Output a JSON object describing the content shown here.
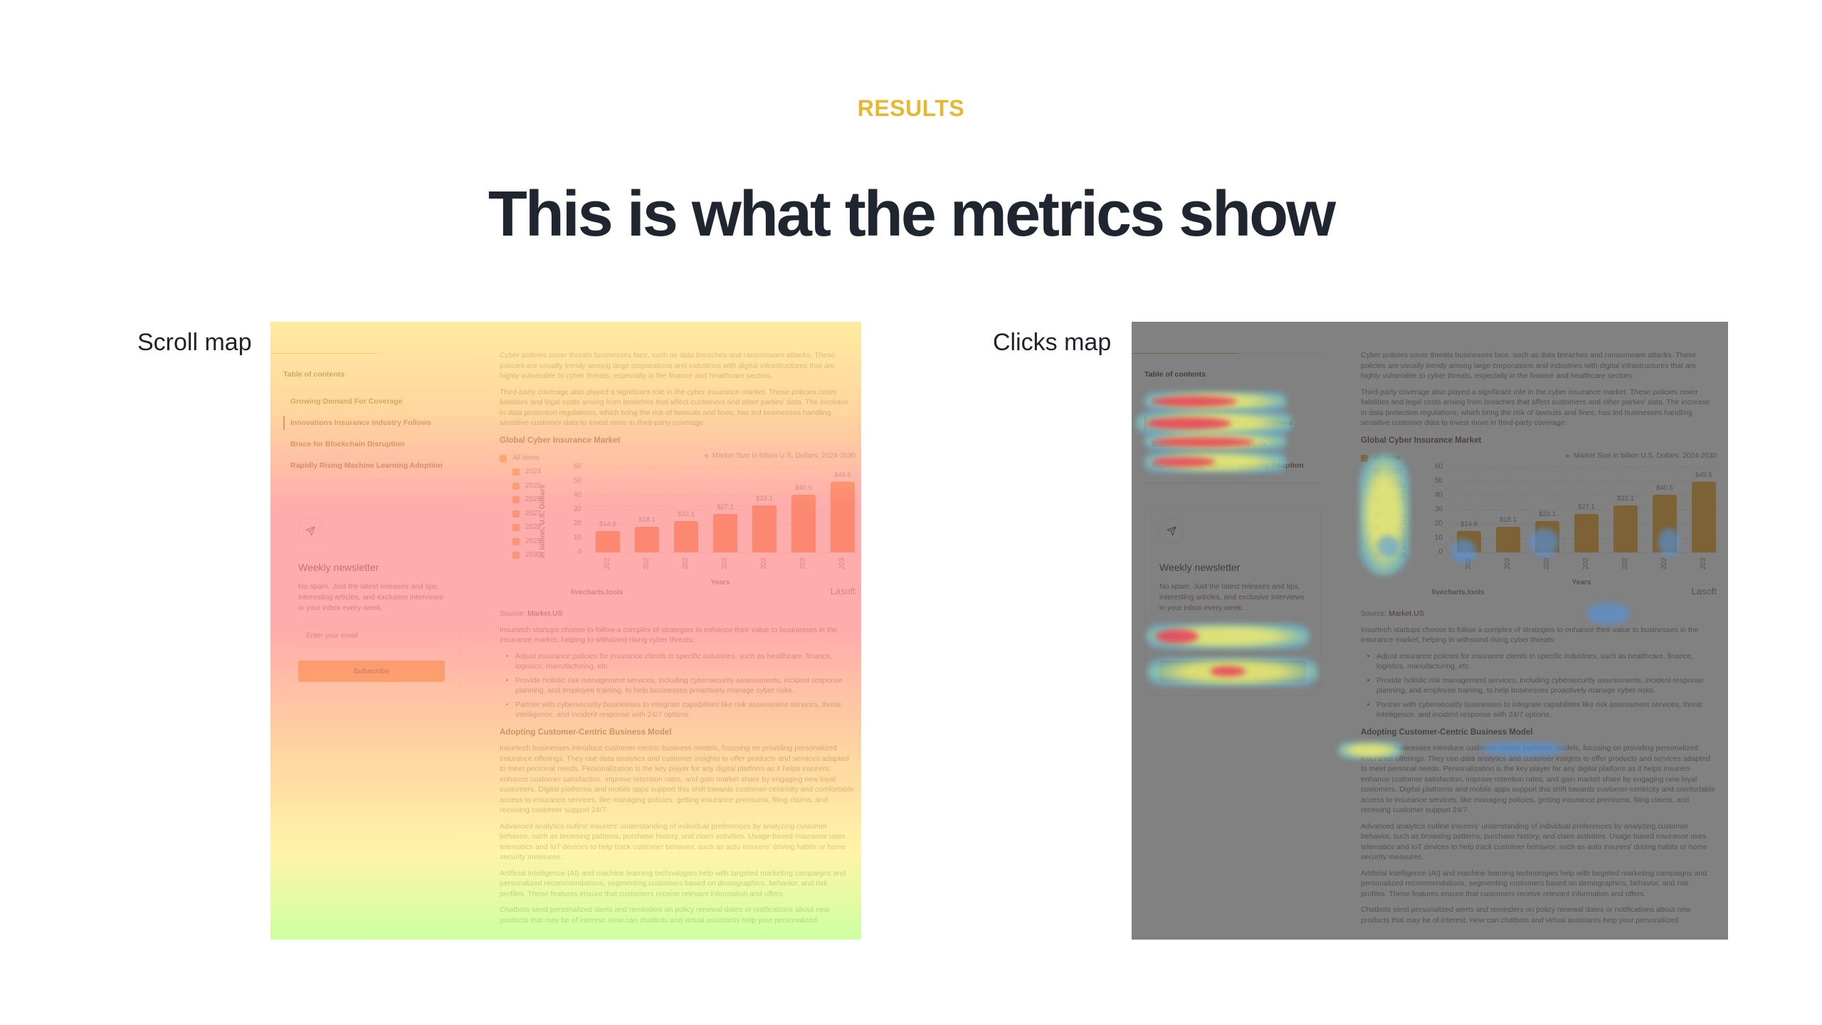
{
  "section": {
    "eyebrow": "RESULTS",
    "headline": "This is what the metrics show",
    "accent_color": "#e8b730"
  },
  "maps": [
    {
      "label": "Scroll map"
    },
    {
      "label": "Clicks map"
    }
  ],
  "page": {
    "toc": {
      "title": "Table of contents",
      "items": [
        {
          "label": "Growing Demand For Coverage",
          "active": false
        },
        {
          "label": "Innovations Insurance Industry Follows",
          "active": true
        },
        {
          "label": "Brace for Blockchain Disruption",
          "active": false
        },
        {
          "label": "Rapidly Rising Machine Learning Adoption",
          "active": false
        }
      ]
    },
    "newsletter": {
      "icon": "send-icon",
      "title": "Weekly newsletter",
      "text": "No spam. Just the latest releases and tips, interesting articles, and exclusive interviews in your inbox every week.",
      "email_placeholder": "Enter your email",
      "button_label": "Subscribe",
      "button_color": "#f59a3a"
    },
    "article": {
      "p1": "Cyber policies cover threats businesses face, such as data breaches and ransomware attacks. These policies are usually trendy among large corporations and industries with digital infrastructures that are highly vulnerable to cyber threats, especially in the finance and healthcare sectors.",
      "p2": "Third-party coverage also played a significant role in the cyber insurance market. These policies cover liabilities and legal costs arising from breaches that affect customers and other parties' data. The increase in data protection regulations, which bring the risk of lawsuits and fines, has led businesses handling sensitive customer data to invest more in third-party coverage.",
      "chart_heading": "Global Cyber Insurance Market",
      "source_prefix": "Source:",
      "source_name": "Market.US",
      "p3": "Insurtech startups choose to follow a complex of strategies to enhance their value to businesses in the insurance market, helping to withstand rising cyber threats:",
      "bullets": [
        "Adjust insurance policies for insurance clients in specific industries, such as healthcare, finance, logistics, manufacturing, etc.",
        "Provide holistic risk management services, including cybersecurity assessments, incident response planning, and employee training, to help businesses proactively manage cyber risks.",
        "Partner with cybersecurity businesses to integrate capabilities like risk assessment services, threat intelligence, and incident response with 24/7 options."
      ],
      "h2": "Adopting Customer-Centric Business Model",
      "p4": "Insurtech businesses introduce customer-centric business models, focusing on providing personalized insurance offerings. They use data analytics and customer insights to offer products and services adapted to meet personal needs. Personalization is the key player for any digital platform as it helps insurers enhance customer satisfaction, improve retention rates, and gain market share by engaging new loyal customers. Digital platforms and mobile apps support this shift towards customer-centricity and comfortable access to insurance services, like managing policies, getting insurance premiums, filing claims, and receiving customer support 24/7.",
      "p5": "Advanced analytics outline insurers' understanding of individual preferences by analyzing customer behavior, such as browsing patterns, purchase history, and claim activities. Usage-based insurance uses telematics and IoT devices to help track customer behavior, such as auto insurers' driving habits or home security measures.",
      "p6": "Artificial intelligence (AI) and machine learning technologies help with targeted marketing campaigns and personalized recommendations, segmenting customers based on demographics, behavior, and risk profiles. These features ensure that customers receive relevant information and offers.",
      "p7": "Chatbots send personalized alerts and reminders on policy renewal dates or notifications about new products that may be of interest. How can chatbots and virtual assistants help your personalized"
    },
    "chart_widget": {
      "all_items_label": "All items",
      "filters": [
        "2024",
        "2025",
        "2026",
        "2027",
        "2028",
        "2029",
        "2030"
      ],
      "credit": "livecharts.tools",
      "brand": "Lasoft"
    }
  },
  "chart_data": {
    "type": "bar",
    "title": "Global Cyber Insurance Market",
    "legend": "Market Size in billion U.S. Dollars, 2024-2030",
    "categories": [
      "2024",
      "2025",
      "2026",
      "2027",
      "2028",
      "2029",
      "2030"
    ],
    "tick_labels_visible": [
      "202",
      "202",
      "202",
      "202",
      "202",
      "202",
      "203"
    ],
    "values": [
      14.8,
      18.1,
      22.1,
      27.1,
      33.1,
      40.5,
      49.5
    ],
    "data_labels": [
      "$14.8",
      "$18.1",
      "$22.1",
      "$27.1",
      "$33.1",
      "$40.5",
      "$49.5"
    ],
    "xlabel": "Years",
    "ylabel": "in billion, U.S. Dollars",
    "ylim": [
      0,
      60
    ],
    "yticks": [
      0,
      10,
      20,
      30,
      40,
      50,
      60
    ],
    "grid": true,
    "legend_position": "top-right",
    "bar_color": "#f57f2d"
  }
}
